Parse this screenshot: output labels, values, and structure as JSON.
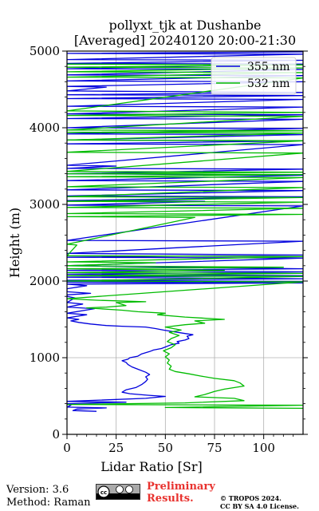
{
  "chart_data": {
    "type": "line",
    "title_line1": "pollyxt_tjk at Dushanbe",
    "title_line2": "[Averaged] 20240120 20:00-21:30",
    "xlabel": "Lidar Ratio [$Sr$]",
    "xlabel_display": "Lidar Ratio [Sr]",
    "ylabel": "Height (m)",
    "xlim": [
      0,
      120
    ],
    "ylim": [
      0,
      5000
    ],
    "xticks": [
      0,
      25,
      50,
      75,
      100
    ],
    "yticks": [
      0,
      1000,
      2000,
      3000,
      4000,
      5000
    ],
    "grid": true,
    "legend_placement": "top-right",
    "series": [
      {
        "name": "355 nm",
        "color": "#0000dd",
        "points": [
          [
            15,
            300
          ],
          [
            3,
            310
          ],
          [
            5,
            330
          ],
          [
            20,
            345
          ],
          [
            0,
            355
          ],
          [
            2,
            380
          ],
          [
            0,
            400
          ],
          [
            30,
            420
          ],
          [
            0,
            430
          ],
          [
            40,
            470
          ],
          [
            50,
            495
          ],
          [
            41,
            510
          ],
          [
            32,
            530
          ],
          [
            28,
            550
          ],
          [
            30,
            580
          ],
          [
            35,
            610
          ],
          [
            38,
            650
          ],
          [
            40,
            690
          ],
          [
            41,
            720
          ],
          [
            40,
            750
          ],
          [
            42,
            780
          ],
          [
            40,
            810
          ],
          [
            36,
            850
          ],
          [
            33,
            880
          ],
          [
            31,
            910
          ],
          [
            30,
            940
          ],
          [
            28,
            960
          ],
          [
            31,
            980
          ],
          [
            32,
            1000
          ],
          [
            36,
            1020
          ],
          [
            38,
            1050
          ],
          [
            42,
            1080
          ],
          [
            44,
            1100
          ],
          [
            48,
            1120
          ],
          [
            50,
            1140
          ],
          [
            53,
            1170
          ],
          [
            57,
            1190
          ],
          [
            56,
            1210
          ],
          [
            60,
            1230
          ],
          [
            62,
            1250
          ],
          [
            61,
            1280
          ],
          [
            64,
            1300
          ],
          [
            59,
            1320
          ],
          [
            54,
            1340
          ],
          [
            49,
            1360
          ],
          [
            45,
            1380
          ],
          [
            40,
            1400
          ],
          [
            28,
            1410
          ],
          [
            20,
            1420
          ],
          [
            12,
            1440
          ],
          [
            6,
            1460
          ],
          [
            2,
            1480
          ],
          [
            6,
            1500
          ],
          [
            0,
            1520
          ],
          [
            10,
            1560
          ],
          [
            0,
            1580
          ],
          [
            14,
            1640
          ],
          [
            0,
            1660
          ],
          [
            8,
            1700
          ],
          [
            0,
            1720
          ],
          [
            4,
            1780
          ],
          [
            0,
            1800
          ],
          [
            0,
            1820
          ],
          [
            12,
            1840
          ],
          [
            0,
            1860
          ],
          [
            0,
            1900
          ],
          [
            10,
            1940
          ],
          [
            0,
            1960
          ],
          [
            120,
            1975
          ],
          [
            0,
            1985
          ],
          [
            120,
            1995
          ],
          [
            0,
            2010
          ],
          [
            120,
            2030
          ],
          [
            0,
            2050
          ],
          [
            120,
            2070
          ],
          [
            0,
            2090
          ],
          [
            120,
            2120
          ],
          [
            0,
            2140
          ],
          [
            120,
            2160
          ],
          [
            0,
            2200
          ],
          [
            120,
            2300
          ],
          [
            0,
            2310
          ],
          [
            120,
            2340
          ],
          [
            0,
            2360
          ],
          [
            120,
            2520
          ],
          [
            0,
            2530
          ],
          [
            120,
            2980
          ],
          [
            0,
            2990
          ],
          [
            70,
            3040
          ],
          [
            0,
            3050
          ],
          [
            120,
            3100
          ],
          [
            0,
            3110
          ],
          [
            120,
            3180
          ],
          [
            0,
            3190
          ],
          [
            120,
            3300
          ],
          [
            0,
            3310
          ],
          [
            120,
            3380
          ],
          [
            0,
            3400
          ],
          [
            120,
            3460
          ],
          [
            0,
            3470
          ],
          [
            25,
            3500
          ],
          [
            0,
            3510
          ],
          [
            120,
            3780
          ],
          [
            0,
            3790
          ],
          [
            120,
            3830
          ],
          [
            0,
            3840
          ],
          [
            120,
            3910
          ],
          [
            0,
            3920
          ],
          [
            120,
            3990
          ],
          [
            0,
            4000
          ],
          [
            120,
            4110
          ],
          [
            0,
            4120
          ],
          [
            120,
            4170
          ],
          [
            0,
            4180
          ],
          [
            120,
            4270
          ],
          [
            0,
            4280
          ],
          [
            120,
            4370
          ],
          [
            0,
            4380
          ],
          [
            120,
            4420
          ],
          [
            0,
            4430
          ],
          [
            120,
            4460
          ],
          [
            0,
            4480
          ],
          [
            20,
            4530
          ],
          [
            0,
            4540
          ],
          [
            120,
            4600
          ],
          [
            0,
            4610
          ],
          [
            120,
            4680
          ],
          [
            0,
            4690
          ],
          [
            120,
            4760
          ],
          [
            0,
            4770
          ],
          [
            120,
            4830
          ],
          [
            0,
            4840
          ],
          [
            120,
            4880
          ],
          [
            0,
            4890
          ],
          [
            120,
            4960
          ],
          [
            0,
            4970
          ],
          [
            120,
            4990
          ]
        ]
      },
      {
        "name": "532 nm",
        "color": "#00bb00",
        "points": [
          [
            120,
            340
          ],
          [
            50,
            350
          ],
          [
            120,
            380
          ],
          [
            0,
            390
          ],
          [
            60,
            410
          ],
          [
            90,
            440
          ],
          [
            85,
            470
          ],
          [
            65,
            490
          ],
          [
            70,
            520
          ],
          [
            75,
            560
          ],
          [
            80,
            590
          ],
          [
            90,
            630
          ],
          [
            88,
            670
          ],
          [
            85,
            700
          ],
          [
            75,
            730
          ],
          [
            68,
            760
          ],
          [
            62,
            790
          ],
          [
            55,
            820
          ],
          [
            52,
            850
          ],
          [
            53,
            890
          ],
          [
            51,
            930
          ],
          [
            52,
            970
          ],
          [
            50,
            1010
          ],
          [
            52,
            1050
          ],
          [
            49,
            1090
          ],
          [
            53,
            1130
          ],
          [
            55,
            1170
          ],
          [
            51,
            1210
          ],
          [
            53,
            1250
          ],
          [
            57,
            1290
          ],
          [
            52,
            1330
          ],
          [
            58,
            1360
          ],
          [
            50,
            1400
          ],
          [
            60,
            1430
          ],
          [
            70,
            1450
          ],
          [
            65,
            1480
          ],
          [
            80,
            1500
          ],
          [
            60,
            1530
          ],
          [
            46,
            1560
          ],
          [
            50,
            1580
          ],
          [
            36,
            1600
          ],
          [
            28,
            1620
          ],
          [
            10,
            1650
          ],
          [
            20,
            1660
          ],
          [
            30,
            1680
          ],
          [
            25,
            1720
          ],
          [
            40,
            1730
          ],
          [
            15,
            1750
          ],
          [
            0,
            1770
          ],
          [
            120,
            1990
          ],
          [
            0,
            2000
          ],
          [
            120,
            2060
          ],
          [
            0,
            2070
          ],
          [
            120,
            2100
          ],
          [
            0,
            2110
          ],
          [
            80,
            2140
          ],
          [
            0,
            2160
          ],
          [
            110,
            2180
          ],
          [
            0,
            2200
          ],
          [
            45,
            2240
          ],
          [
            0,
            2250
          ],
          [
            120,
            2320
          ],
          [
            0,
            2330
          ],
          [
            5,
            2470
          ],
          [
            0,
            2480
          ],
          [
            65,
            2830
          ],
          [
            0,
            2840
          ],
          [
            120,
            2870
          ],
          [
            0,
            2880
          ],
          [
            120,
            2950
          ],
          [
            0,
            2960
          ],
          [
            120,
            3030
          ],
          [
            0,
            3040
          ],
          [
            120,
            3090
          ],
          [
            0,
            3100
          ],
          [
            120,
            3220
          ],
          [
            0,
            3230
          ],
          [
            120,
            3350
          ],
          [
            0,
            3360
          ],
          [
            120,
            3390
          ],
          [
            0,
            3400
          ],
          [
            120,
            3420
          ],
          [
            0,
            3430
          ],
          [
            120,
            3670
          ],
          [
            0,
            3680
          ],
          [
            120,
            3830
          ],
          [
            0,
            3840
          ],
          [
            120,
            3930
          ],
          [
            0,
            3940
          ],
          [
            120,
            3960
          ],
          [
            0,
            3970
          ],
          [
            120,
            4150
          ],
          [
            0,
            4160
          ],
          [
            120,
            4200
          ],
          [
            0,
            4220
          ],
          [
            120,
            4650
          ],
          [
            0,
            4660
          ],
          [
            120,
            4720
          ],
          [
            0,
            4730
          ],
          [
            120,
            4780
          ],
          [
            0,
            4790
          ],
          [
            120,
            4820
          ],
          [
            0,
            4830
          ]
        ]
      }
    ]
  },
  "footer": {
    "version": "Version: 3.6",
    "method": "Method: Raman",
    "preliminary_line1": "Preliminary",
    "preliminary_line2": "Results.",
    "copyright_line1": "© TROPOS 2024.",
    "copyright_line2": "CC BY SA 4.0 License."
  }
}
